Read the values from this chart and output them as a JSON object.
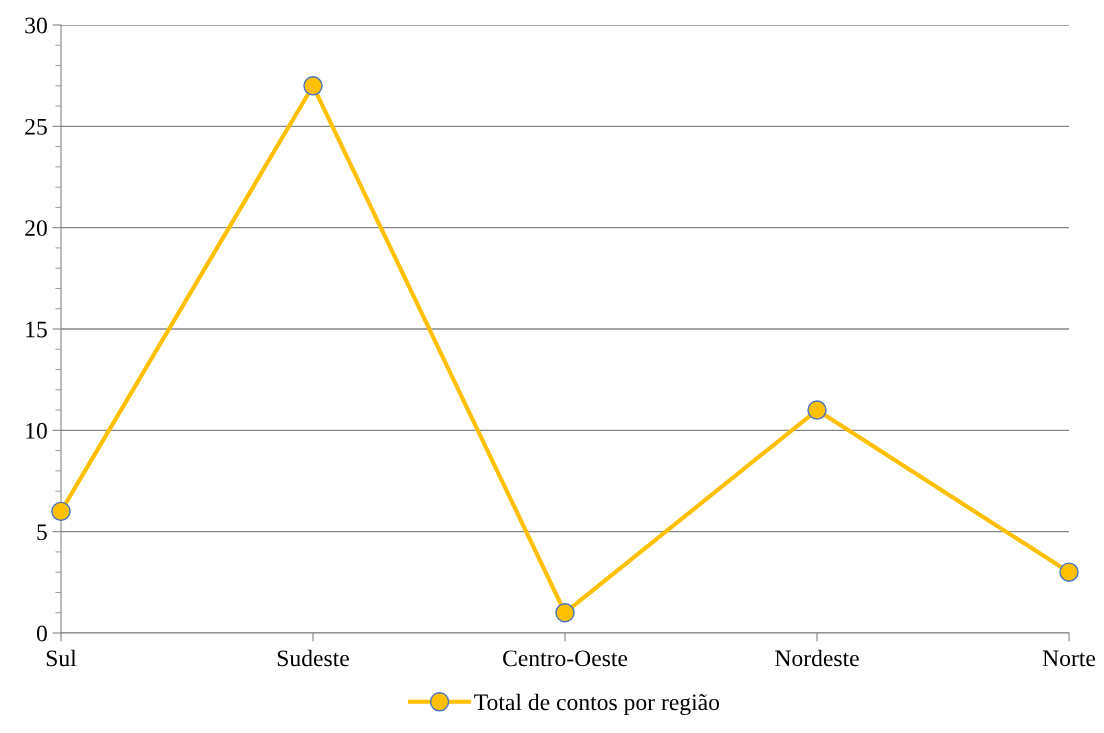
{
  "chart_data": {
    "type": "line",
    "categories": [
      "Sul",
      "Sudeste",
      "Centro-Oeste",
      "Nordeste",
      "Norte"
    ],
    "series": [
      {
        "name": "Total de contos por região",
        "color": "#ffc000",
        "values": [
          6,
          27,
          1,
          11,
          3
        ]
      }
    ],
    "ylim": [
      0,
      30
    ],
    "yticks": [
      0,
      5,
      10,
      15,
      20,
      25,
      30
    ],
    "grid": "y",
    "legend": "bottom",
    "marker": "circle",
    "line_style": "solid"
  }
}
